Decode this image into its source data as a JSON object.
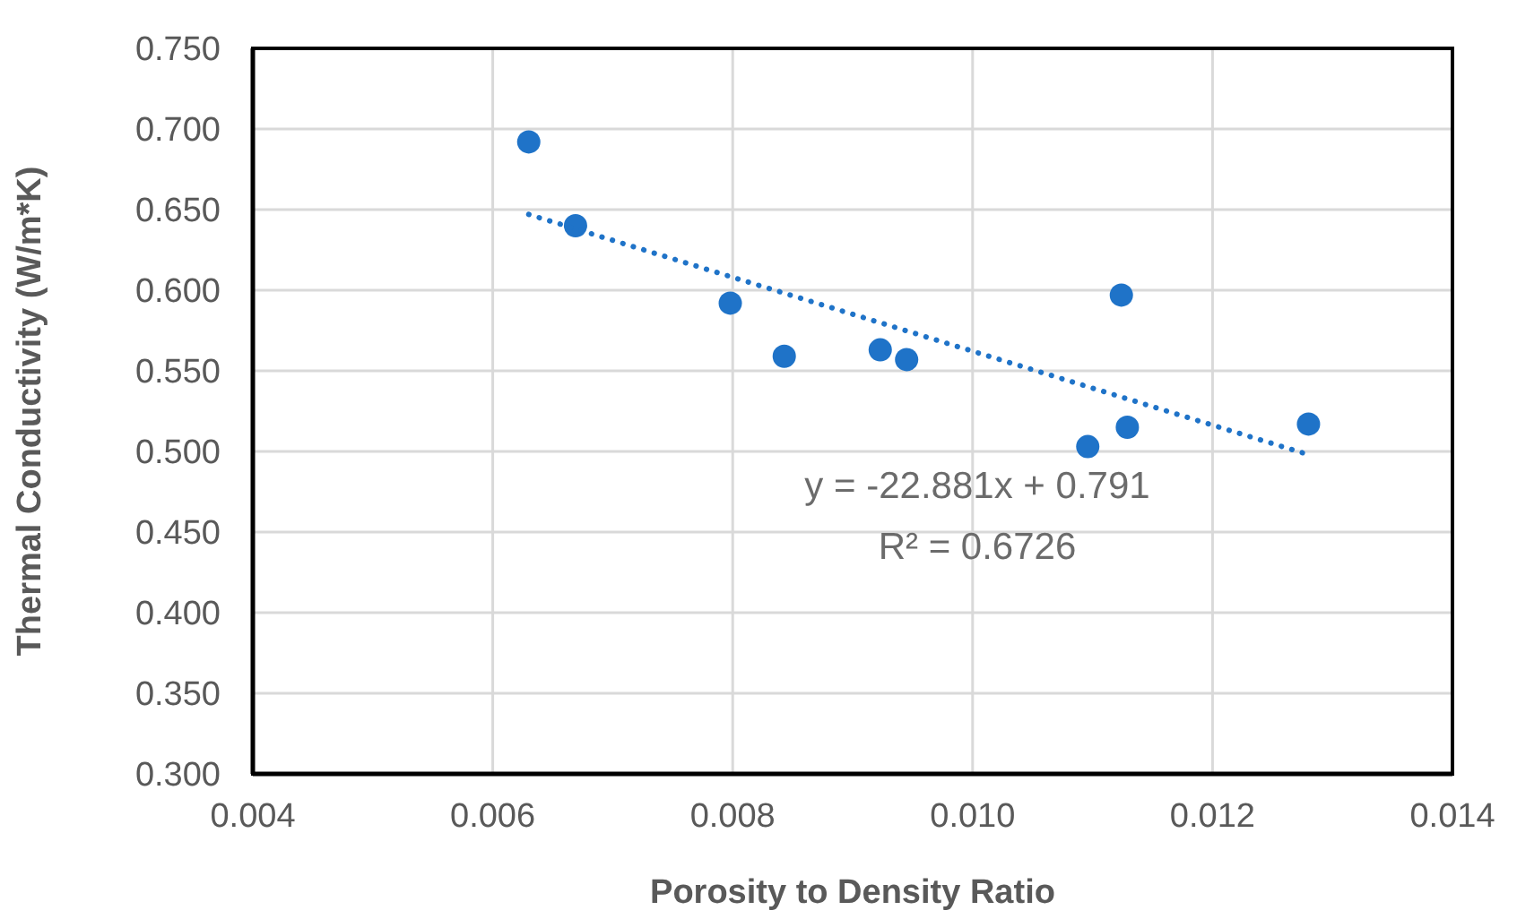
{
  "chart_data": {
    "type": "scatter",
    "xlabel": "Porosity to Density Ratio",
    "ylabel": "Thermal Conductivity (W/m*K)",
    "xlim": [
      0.004,
      0.014
    ],
    "xticks": [
      {
        "value": 0.004,
        "label": "0.004"
      },
      {
        "value": 0.006,
        "label": "0.006"
      },
      {
        "value": 0.008,
        "label": "0.008"
      },
      {
        "value": 0.01,
        "label": "0.010"
      },
      {
        "value": 0.012,
        "label": "0.012"
      },
      {
        "value": 0.014,
        "label": "0.014"
      }
    ],
    "ylim": [
      0.3,
      0.75
    ],
    "yticks": [
      {
        "value": 0.3,
        "label": "0.300"
      },
      {
        "value": 0.35,
        "label": "0.350"
      },
      {
        "value": 0.4,
        "label": "0.400"
      },
      {
        "value": 0.45,
        "label": "0.450"
      },
      {
        "value": 0.5,
        "label": "0.500"
      },
      {
        "value": 0.55,
        "label": "0.550"
      },
      {
        "value": 0.6,
        "label": "0.600"
      },
      {
        "value": 0.65,
        "label": "0.650"
      },
      {
        "value": 0.7,
        "label": "0.700"
      },
      {
        "value": 0.75,
        "label": "0.750"
      }
    ],
    "grid": true,
    "marker": "circle",
    "legend": false,
    "series": [
      {
        "color": "#1f73c8",
        "x": [
          0.0063,
          0.00669,
          0.00798,
          0.00843,
          0.00923,
          0.00945,
          0.01124,
          0.01096,
          0.01129,
          0.0128
        ],
        "values": [
          0.692,
          0.64,
          0.592,
          0.559,
          0.563,
          0.557,
          0.597,
          0.503,
          0.515,
          0.517
        ]
      },
      {
        "type": "line",
        "color": "#1f73c8",
        "line_style": "dotted",
        "marker": "none",
        "x": [
          0.0063,
          0.0128
        ],
        "values": [
          0.647,
          0.498
        ]
      }
    ],
    "annotations": [
      "y = -22.881x + 0.791",
      "R² = 0.6726"
    ]
  }
}
